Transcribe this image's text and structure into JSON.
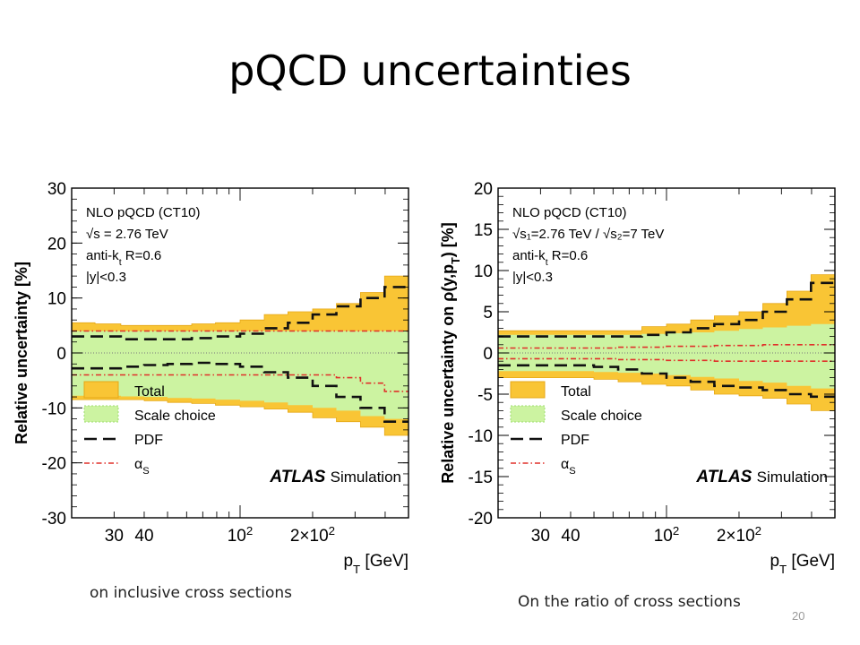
{
  "slide": {
    "title": "pQCD uncertainties",
    "page_number": "20"
  },
  "captions": {
    "left": "on inclusive cross sections",
    "right": "On the ratio of cross sections"
  },
  "colors": {
    "total": "#f9c535",
    "total_border": "#e6a817",
    "scale": "#ccf3a1",
    "scale_border": "#9edc6e",
    "pdf": "#111111",
    "alphas": "#e0302a",
    "zero_line": "#7a7a7a"
  },
  "chart_data": [
    {
      "type": "area",
      "id": "inclusive",
      "ylabel": "Relative uncertainty [%]",
      "xlabel": "p_T [GeV]",
      "x_scale": "log",
      "xlim": [
        20,
        500
      ],
      "ylim": [
        -30,
        30
      ],
      "y_ticks": [
        "30",
        "20",
        "10",
        "0",
        "-10",
        "-20",
        "-30"
      ],
      "y_tick_values": [
        30,
        20,
        10,
        0,
        -10,
        -20,
        -30
      ],
      "x_ticks": [
        "30",
        "40",
        "10^2",
        "2×10^2"
      ],
      "x_tick_values": [
        30,
        40,
        100,
        200
      ],
      "info_text": [
        "NLO pQCD (CT10)",
        "√s = 2.76 TeV",
        "anti-k_t R=0.6",
        "|y|<0.3"
      ],
      "legend": [
        "Total",
        "Scale choice",
        "PDF",
        "α_S"
      ],
      "watermark": [
        "ATLAS",
        "Simulation"
      ],
      "bin_edges": [
        20,
        25,
        32,
        40,
        50,
        63,
        79,
        100,
        126,
        158,
        200,
        251,
        316,
        398,
        500
      ],
      "series": [
        {
          "name": "Total",
          "upper": [
            5.5,
            5.3,
            5.0,
            5.0,
            5.0,
            5.3,
            5.5,
            6.0,
            7.0,
            7.5,
            8.0,
            9.0,
            11.0,
            14.0
          ],
          "lower": [
            -8.5,
            -8.5,
            -8.5,
            -8.7,
            -9.0,
            -9.2,
            -9.5,
            -9.8,
            -10.2,
            -10.8,
            -11.8,
            -12.5,
            -13.5,
            -15.0
          ]
        },
        {
          "name": "Scale choice",
          "upper": [
            4.0,
            4.0,
            4.0,
            4.0,
            4.0,
            4.0,
            4.0,
            4.0,
            4.0,
            4.0,
            4.0,
            4.0,
            4.0,
            4.0
          ],
          "lower": [
            -7.8,
            -7.8,
            -7.9,
            -8.0,
            -8.2,
            -8.3,
            -8.5,
            -8.7,
            -9.0,
            -9.5,
            -10.0,
            -10.5,
            -11.5,
            -12.0
          ]
        },
        {
          "name": "PDF",
          "upper": [
            3.0,
            3.0,
            2.5,
            2.5,
            2.5,
            2.7,
            3.0,
            3.5,
            4.5,
            5.5,
            7.0,
            8.5,
            10.0,
            12.0
          ],
          "lower": [
            -2.8,
            -2.8,
            -2.5,
            -2.2,
            -2.0,
            -1.8,
            -2.0,
            -2.5,
            -3.5,
            -4.5,
            -6.0,
            -8.0,
            -10.0,
            -12.5
          ]
        },
        {
          "name": "α_S",
          "upper": [
            4.0,
            4.0,
            4.0,
            4.0,
            4.0,
            4.0,
            4.0,
            4.0,
            4.0,
            4.0,
            4.0,
            4.0,
            4.0,
            4.0
          ],
          "lower": [
            -4.0,
            -4.0,
            -4.0,
            -4.0,
            -4.0,
            -4.0,
            -4.0,
            -4.0,
            -4.0,
            -4.0,
            -4.0,
            -4.5,
            -5.5,
            -7.0
          ]
        }
      ]
    },
    {
      "type": "area",
      "id": "ratio",
      "ylabel": "Relative uncertainty on ρ(y,p_T) [%]",
      "xlabel": "p_T [GeV]",
      "x_scale": "log",
      "xlim": [
        20,
        500
      ],
      "ylim": [
        -20,
        20
      ],
      "y_ticks": [
        "20",
        "15",
        "10",
        "5",
        "0",
        "-5",
        "-10",
        "-15",
        "-20"
      ],
      "y_tick_values": [
        20,
        15,
        10,
        5,
        0,
        -5,
        -10,
        -15,
        -20
      ],
      "x_ticks": [
        "30",
        "40",
        "10^2",
        "2×10^2"
      ],
      "x_tick_values": [
        30,
        40,
        100,
        200
      ],
      "info_text": [
        "NLO pQCD (CT10)",
        "√s₁=2.76 TeV / √s₂=7 TeV",
        "anti-k_t R=0.6",
        "|y|<0.3"
      ],
      "legend": [
        "Total",
        "Scale choice",
        "PDF",
        "α_S"
      ],
      "watermark": [
        "ATLAS",
        "Simulation"
      ],
      "bin_edges": [
        20,
        25,
        32,
        40,
        50,
        63,
        79,
        100,
        126,
        158,
        200,
        251,
        316,
        398,
        500
      ],
      "series": [
        {
          "name": "Total",
          "upper": [
            2.7,
            2.7,
            2.7,
            2.7,
            2.7,
            2.7,
            3.2,
            3.5,
            4.0,
            4.5,
            5.0,
            6.0,
            7.5,
            9.5
          ],
          "lower": [
            -3.0,
            -3.0,
            -3.0,
            -3.0,
            -3.2,
            -3.5,
            -3.8,
            -4.0,
            -4.5,
            -5.0,
            -5.2,
            -5.5,
            -6.2,
            -7.0
          ]
        },
        {
          "name": "Scale choice",
          "upper": [
            2.2,
            2.2,
            2.2,
            2.2,
            2.2,
            2.2,
            2.3,
            2.4,
            2.5,
            2.7,
            2.9,
            3.1,
            3.3,
            3.5
          ],
          "lower": [
            -2.2,
            -2.2,
            -2.2,
            -2.2,
            -2.3,
            -2.4,
            -2.5,
            -2.7,
            -2.9,
            -3.1,
            -3.4,
            -3.6,
            -4.0,
            -4.3
          ]
        },
        {
          "name": "PDF",
          "upper": [
            2.0,
            2.0,
            2.0,
            2.0,
            2.0,
            2.0,
            2.2,
            2.5,
            3.0,
            3.5,
            4.0,
            5.0,
            6.5,
            8.5
          ],
          "lower": [
            -1.5,
            -1.5,
            -1.5,
            -1.5,
            -1.7,
            -2.0,
            -2.5,
            -3.0,
            -3.5,
            -4.0,
            -4.2,
            -4.5,
            -5.0,
            -5.3
          ]
        },
        {
          "name": "α_S",
          "upper": [
            0.6,
            0.6,
            0.6,
            0.6,
            0.6,
            0.7,
            0.7,
            0.8,
            0.8,
            0.9,
            0.9,
            1.0,
            1.0,
            1.0
          ],
          "lower": [
            -0.7,
            -0.7,
            -0.7,
            -0.7,
            -0.7,
            -0.8,
            -0.8,
            -0.9,
            -0.9,
            -1.0,
            -1.0,
            -1.0,
            -1.0,
            -1.0
          ]
        }
      ]
    }
  ]
}
